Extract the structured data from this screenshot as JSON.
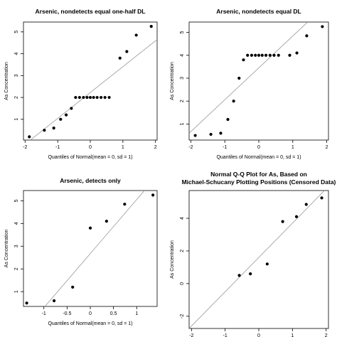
{
  "chart_data": [
    {
      "type": "scatter",
      "title": [
        "Arsenic, nondetects equal one-half DL"
      ],
      "xlabel": "Quantiles of Normal(mean = 0, sd = 1)",
      "ylabel": "As Concentration",
      "xlim": [
        -2.05,
        2.05
      ],
      "ylim": [
        0.05,
        5.45
      ],
      "xticks": [
        -2,
        -1,
        0,
        1,
        2
      ],
      "yticks": [
        1,
        2,
        3,
        4,
        5
      ],
      "line": {
        "x1": -2.05,
        "y1": -0.2,
        "x2": 2.05,
        "y2": 4.65
      },
      "x": [
        -1.87,
        -1.41,
        -1.12,
        -0.91,
        -0.74,
        -0.58,
        -0.45,
        -0.33,
        -0.21,
        -0.1,
        0.0,
        0.1,
        0.21,
        0.33,
        0.45,
        0.58,
        0.91,
        1.12,
        1.41,
        1.87
      ],
      "y": [
        0.2,
        0.5,
        0.6,
        1.0,
        1.2,
        1.5,
        2.0,
        2.0,
        2.0,
        2.0,
        2.0,
        2.0,
        2.0,
        2.0,
        2.0,
        2.0,
        3.8,
        4.1,
        4.85,
        5.25
      ]
    },
    {
      "type": "scatter",
      "title": [
        "Arsenic, nondetects equal DL"
      ],
      "xlabel": "Quantiles of Normal(mean = 0, sd = 1)",
      "ylabel": "As Concentration",
      "xlim": [
        -2.05,
        2.05
      ],
      "ylim": [
        0.3,
        5.45
      ],
      "xticks": [
        -2,
        -1,
        0,
        1,
        2
      ],
      "yticks": [
        1,
        2,
        3,
        4,
        5
      ],
      "line": {
        "x1": -2.05,
        "y1": 0.6,
        "x2": 2.05,
        "y2": 6.3
      },
      "x": [
        -1.87,
        -1.41,
        -1.12,
        -0.91,
        -0.74,
        -0.58,
        -0.45,
        -0.33,
        -0.21,
        -0.1,
        0.0,
        0.1,
        0.21,
        0.33,
        0.45,
        0.58,
        0.91,
        1.12,
        1.41,
        1.87
      ],
      "y": [
        0.5,
        0.55,
        0.6,
        1.2,
        2.0,
        3.0,
        3.8,
        4.0,
        4.0,
        4.0,
        4.0,
        4.0,
        4.0,
        4.0,
        4.0,
        4.0,
        4.0,
        4.1,
        4.85,
        5.25
      ]
    },
    {
      "type": "scatter",
      "title": [
        "Arsenic, detects only"
      ],
      "xlabel": "Quantiles of Normal(mean = 0, sd = 1)",
      "ylabel": "As Concentration",
      "xlim": [
        -1.44,
        1.44
      ],
      "ylim": [
        0.35,
        5.45
      ],
      "xticks": [
        -1.0,
        -0.5,
        0.0,
        0.5,
        1.0
      ],
      "yticks": [
        1,
        2,
        3,
        4,
        5
      ],
      "line": {
        "x1": -1.44,
        "y1": -0.75,
        "x2": 1.44,
        "y2": 6.1
      },
      "x": [
        -1.37,
        -0.78,
        -0.38,
        0.0,
        0.35,
        0.74,
        1.35
      ],
      "y": [
        0.5,
        0.6,
        1.2,
        3.8,
        4.1,
        4.85,
        5.25
      ]
    },
    {
      "type": "scatter",
      "title": [
        "Normal Q-Q Plot for As, Based on",
        "Michael-Schucany Plotting Positions (Censored Data)"
      ],
      "xlabel": "Quantiles of Normal(mean = 0, sd = 1)",
      "ylabel": "As Concentration",
      "xlim": [
        -2.07,
        2.07
      ],
      "ylim": [
        -2.75,
        5.7
      ],
      "xticks": [
        -2,
        -1,
        0,
        1,
        2
      ],
      "yticks": [
        -2,
        0,
        2,
        4
      ],
      "line": {
        "x1": -2.07,
        "y1": -2.75,
        "x2": 2.07,
        "y2": 5.95
      },
      "x": [
        -0.58,
        -0.25,
        0.25,
        0.71,
        1.12,
        1.41,
        1.87
      ],
      "y": [
        0.5,
        0.6,
        1.2,
        3.8,
        4.1,
        4.85,
        5.25
      ]
    }
  ]
}
